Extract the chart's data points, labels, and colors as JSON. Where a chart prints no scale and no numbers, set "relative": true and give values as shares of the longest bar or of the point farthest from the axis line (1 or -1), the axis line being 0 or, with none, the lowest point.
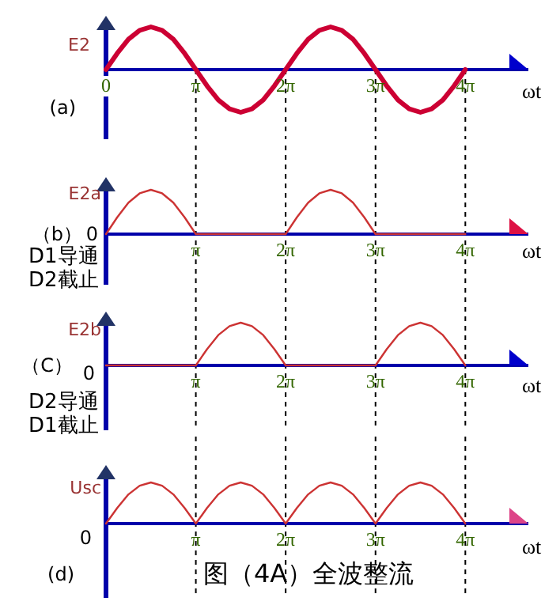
{
  "chart_data": [
    {
      "type": "line",
      "relative": true,
      "ylabel": "E2",
      "xlabel": "ωt",
      "xlim": [
        0,
        14.77
      ],
      "xticks": [
        {
          "value": 0,
          "label": "0"
        },
        {
          "value": 3.142,
          "label": "π"
        },
        {
          "value": 6.283,
          "label": "2π"
        },
        {
          "value": 9.425,
          "label": "3π"
        },
        {
          "value": 12.566,
          "label": "4π"
        }
      ],
      "annotations": [
        "(a)"
      ],
      "ref_lines": [
        {
          "axis": "x",
          "value": 3.142,
          "line_style": "dashed",
          "color": "#000000"
        },
        {
          "axis": "x",
          "value": 6.283,
          "line_style": "dashed",
          "color": "#000000"
        },
        {
          "axis": "x",
          "value": 9.425,
          "line_style": "dashed",
          "color": "#000000"
        },
        {
          "axis": "x",
          "value": 12.566,
          "line_style": "dashed",
          "color": "#000000"
        }
      ],
      "x": [
        0,
        0.393,
        0.785,
        1.178,
        1.571,
        1.963,
        2.356,
        2.749,
        3.142,
        3.534,
        3.927,
        4.32,
        4.712,
        5.105,
        5.498,
        5.89,
        6.283,
        6.676,
        7.069,
        7.461,
        7.854,
        8.247,
        8.639,
        9.032,
        9.425,
        9.817,
        10.21,
        10.603,
        10.996,
        11.388,
        11.781,
        12.174,
        12.566
      ],
      "series": [
        {
          "color": "#cc0033",
          "values": [
            0,
            0.38,
            0.71,
            0.92,
            1,
            0.92,
            0.71,
            0.38,
            0,
            -0.38,
            -0.71,
            -0.92,
            -1,
            -0.92,
            -0.71,
            -0.38,
            0,
            0.38,
            0.71,
            0.92,
            1,
            0.92,
            0.71,
            0.38,
            0,
            -0.38,
            -0.71,
            -0.92,
            -1,
            -0.92,
            -0.71,
            -0.38,
            0
          ]
        }
      ]
    },
    {
      "type": "line",
      "relative": true,
      "ylabel": "E2a",
      "xlabel": "ωt",
      "xlim": [
        0,
        14.77
      ],
      "xticks": [
        {
          "value": 3.142,
          "label": "π"
        },
        {
          "value": 6.283,
          "label": "2π"
        },
        {
          "value": 9.425,
          "label": "3π"
        },
        {
          "value": 12.566,
          "label": "4π"
        }
      ],
      "annotations": [
        "0",
        "（b）",
        "D1导通",
        "D2截止"
      ],
      "ref_lines": [
        {
          "axis": "x",
          "value": 3.142,
          "line_style": "dashed",
          "color": "#000000"
        },
        {
          "axis": "x",
          "value": 6.283,
          "line_style": "dashed",
          "color": "#000000"
        },
        {
          "axis": "x",
          "value": 9.425,
          "line_style": "dashed",
          "color": "#000000"
        },
        {
          "axis": "x",
          "value": 12.566,
          "line_style": "dashed",
          "color": "#000000"
        }
      ],
      "x": [
        0,
        0.393,
        0.785,
        1.178,
        1.571,
        1.963,
        2.356,
        2.749,
        3.142,
        3.534,
        3.927,
        4.32,
        4.712,
        5.105,
        5.498,
        5.89,
        6.283,
        6.676,
        7.069,
        7.461,
        7.854,
        8.247,
        8.639,
        9.032,
        9.425,
        9.817,
        10.21,
        10.603,
        10.996,
        11.388,
        11.781,
        12.174,
        12.566
      ],
      "series": [
        {
          "color": "#cc3333",
          "values": [
            0,
            0.38,
            0.71,
            0.92,
            1,
            0.92,
            0.71,
            0.38,
            0,
            0,
            0,
            0,
            0,
            0,
            0,
            0,
            0,
            0.38,
            0.71,
            0.92,
            1,
            0.92,
            0.71,
            0.38,
            0,
            0,
            0,
            0,
            0,
            0,
            0,
            0,
            0
          ]
        }
      ]
    },
    {
      "type": "line",
      "relative": true,
      "ylabel": "E2b",
      "xlabel": "ωt",
      "xlim": [
        0,
        14.77
      ],
      "xticks": [
        {
          "value": 3.142,
          "label": "π"
        },
        {
          "value": 6.283,
          "label": "2π"
        },
        {
          "value": 9.425,
          "label": "3π"
        },
        {
          "value": 12.566,
          "label": "4π"
        }
      ],
      "annotations": [
        "0",
        "（C）",
        "D2导通",
        "D1截止"
      ],
      "ref_lines": [
        {
          "axis": "x",
          "value": 3.142,
          "line_style": "dashed",
          "color": "#000000"
        },
        {
          "axis": "x",
          "value": 6.283,
          "line_style": "dashed",
          "color": "#000000"
        },
        {
          "axis": "x",
          "value": 9.425,
          "line_style": "dashed",
          "color": "#000000"
        },
        {
          "axis": "x",
          "value": 12.566,
          "line_style": "dashed",
          "color": "#000000"
        }
      ],
      "x": [
        0,
        0.393,
        0.785,
        1.178,
        1.571,
        1.963,
        2.356,
        2.749,
        3.142,
        3.534,
        3.927,
        4.32,
        4.712,
        5.105,
        5.498,
        5.89,
        6.283,
        6.676,
        7.069,
        7.461,
        7.854,
        8.247,
        8.639,
        9.032,
        9.425,
        9.817,
        10.21,
        10.603,
        10.996,
        11.388,
        11.781,
        12.174,
        12.566
      ],
      "series": [
        {
          "color": "#cc3333",
          "values": [
            0,
            0,
            0,
            0,
            0,
            0,
            0,
            0,
            0,
            0.38,
            0.71,
            0.92,
            1,
            0.92,
            0.71,
            0.38,
            0,
            0,
            0,
            0,
            0,
            0,
            0,
            0,
            0,
            0.38,
            0.71,
            0.92,
            1,
            0.92,
            0.71,
            0.38,
            0
          ]
        }
      ]
    },
    {
      "type": "line",
      "relative": true,
      "ylabel": "Usc",
      "xlabel": "ωt",
      "title": "图（4A）全波整流",
      "xlim": [
        0,
        14.77
      ],
      "xticks": [
        {
          "value": 3.142,
          "label": "π"
        },
        {
          "value": 6.283,
          "label": "2π"
        },
        {
          "value": 9.425,
          "label": "3π"
        },
        {
          "value": 12.566,
          "label": "4π"
        }
      ],
      "annotations": [
        "0",
        "(d)"
      ],
      "ref_lines": [
        {
          "axis": "x",
          "value": 3.142,
          "line_style": "dashed",
          "color": "#000000"
        },
        {
          "axis": "x",
          "value": 6.283,
          "line_style": "dashed",
          "color": "#000000"
        },
        {
          "axis": "x",
          "value": 9.425,
          "line_style": "dashed",
          "color": "#000000"
        },
        {
          "axis": "x",
          "value": 12.566,
          "line_style": "dashed",
          "color": "#000000"
        }
      ],
      "x": [
        0,
        0.393,
        0.785,
        1.178,
        1.571,
        1.963,
        2.356,
        2.749,
        3.142,
        3.534,
        3.927,
        4.32,
        4.712,
        5.105,
        5.498,
        5.89,
        6.283,
        6.676,
        7.069,
        7.461,
        7.854,
        8.247,
        8.639,
        9.032,
        9.425,
        9.817,
        10.21,
        10.603,
        10.996,
        11.388,
        11.781,
        12.174,
        12.566
      ],
      "series": [
        {
          "color": "#cc3333",
          "values": [
            0,
            0.38,
            0.71,
            0.92,
            1,
            0.92,
            0.71,
            0.38,
            0,
            0.38,
            0.71,
            0.92,
            1,
            0.92,
            0.71,
            0.38,
            0,
            0.38,
            0.71,
            0.92,
            1,
            0.92,
            0.71,
            0.38,
            0,
            0.38,
            0.71,
            0.92,
            1,
            0.92,
            0.71,
            0.38,
            0
          ]
        }
      ]
    }
  ]
}
